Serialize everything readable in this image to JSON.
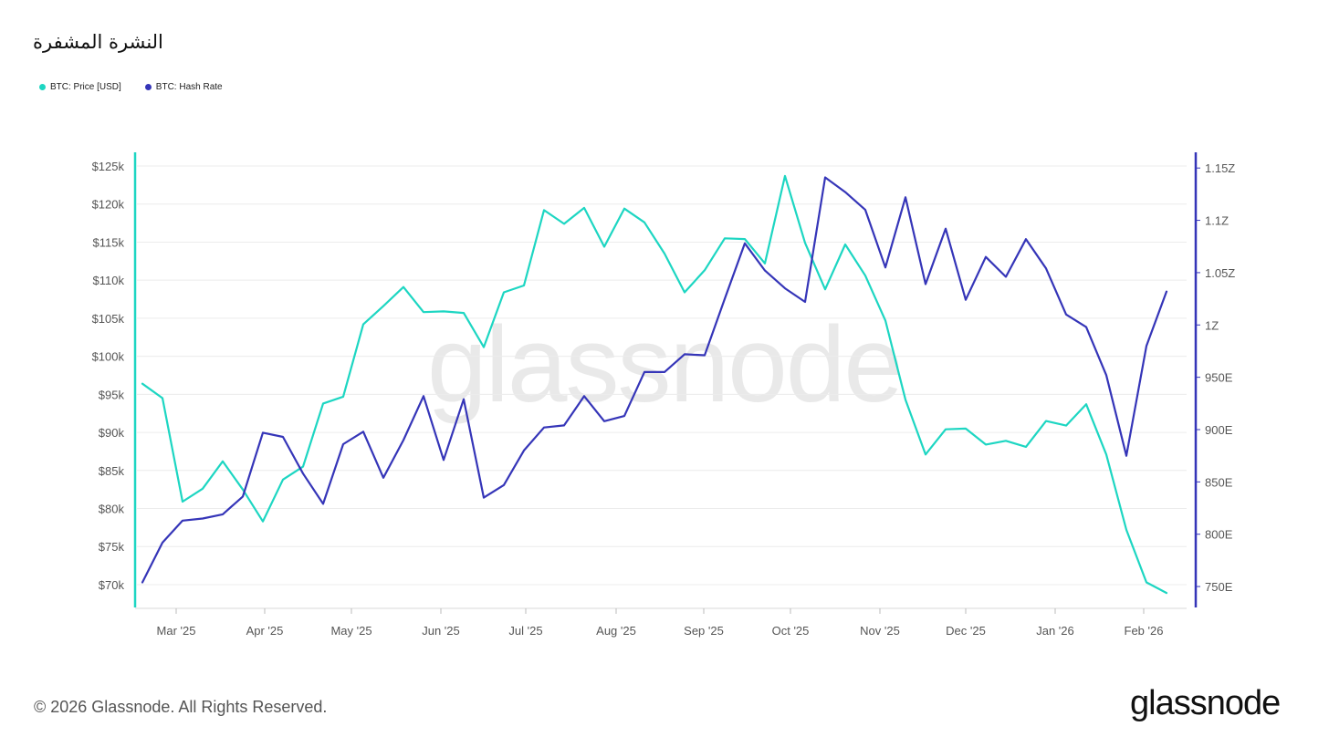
{
  "title": "النشرة المشفرة",
  "legend": {
    "price": "BTC: Price [USD]",
    "hashrate": "BTC: Hash Rate"
  },
  "watermark": "glassnode",
  "footer": {
    "copyright": "© 2026 Glassnode. All Rights Reserved.",
    "brand": "glassnode"
  },
  "colors": {
    "price": "#1dd6c2",
    "hashrate": "#3535b8",
    "grid": "#ececec"
  },
  "chart_data": {
    "type": "line",
    "x_tick_labels": [
      "Mar '25",
      "Apr '25",
      "May '25",
      "Jun '25",
      "Jul '25",
      "Aug '25",
      "Sep '25",
      "Oct '25",
      "Nov '25",
      "Dec '25",
      "Jan '26",
      "Feb '26"
    ],
    "y_left": {
      "tick_labels": [
        "$70k",
        "$75k",
        "$80k",
        "$85k",
        "$90k",
        "$95k",
        "$100k",
        "$105k",
        "$110k",
        "$115k",
        "$120k",
        "$125k"
      ],
      "tick_values": [
        70000,
        75000,
        80000,
        85000,
        90000,
        95000,
        100000,
        105000,
        110000,
        115000,
        120000,
        125000
      ],
      "range": [
        67000,
        126800
      ]
    },
    "y_right": {
      "tick_labels": [
        "750E",
        "800E",
        "850E",
        "900E",
        "950E",
        "1Z",
        "1.05Z",
        "1.1Z",
        "1.15Z"
      ],
      "tick_values": [
        750,
        800,
        850,
        900,
        950,
        1000,
        1050,
        1100,
        1150
      ],
      "range": [
        730,
        1165
      ]
    },
    "grid": true,
    "legend_position": "top-left",
    "series": [
      {
        "name": "BTC: Price [USD]",
        "axis": "left",
        "values": [
          96400,
          94500,
          80900,
          82600,
          86200,
          82500,
          78300,
          83800,
          85500,
          93800,
          94700,
          104200,
          106600,
          109100,
          105800,
          105900,
          105700,
          101200,
          108400,
          109300,
          119200,
          117400,
          119500,
          114400,
          119400,
          117600,
          113500,
          108400,
          111300,
          115500,
          115400,
          112200,
          123700,
          114900,
          108800,
          114700,
          110600,
          104700,
          94300,
          87100,
          90400,
          90500,
          88400,
          88900,
          88100,
          91500,
          90900,
          93700,
          87100,
          77200,
          70300,
          68900
        ]
      },
      {
        "name": "BTC: Hash Rate",
        "axis": "right",
        "values": [
          754,
          792,
          813,
          815,
          819,
          836,
          897,
          893,
          858,
          829,
          886,
          898,
          854,
          890,
          932,
          871,
          929,
          835,
          847,
          880,
          902,
          904,
          932,
          908,
          913,
          955,
          955,
          972,
          971,
          1025,
          1078,
          1052,
          1035,
          1022,
          1141,
          1127,
          1110,
          1055,
          1122,
          1039,
          1092,
          1024,
          1065,
          1046,
          1082,
          1054,
          1010,
          998,
          952,
          875,
          980,
          1032
        ]
      }
    ]
  }
}
